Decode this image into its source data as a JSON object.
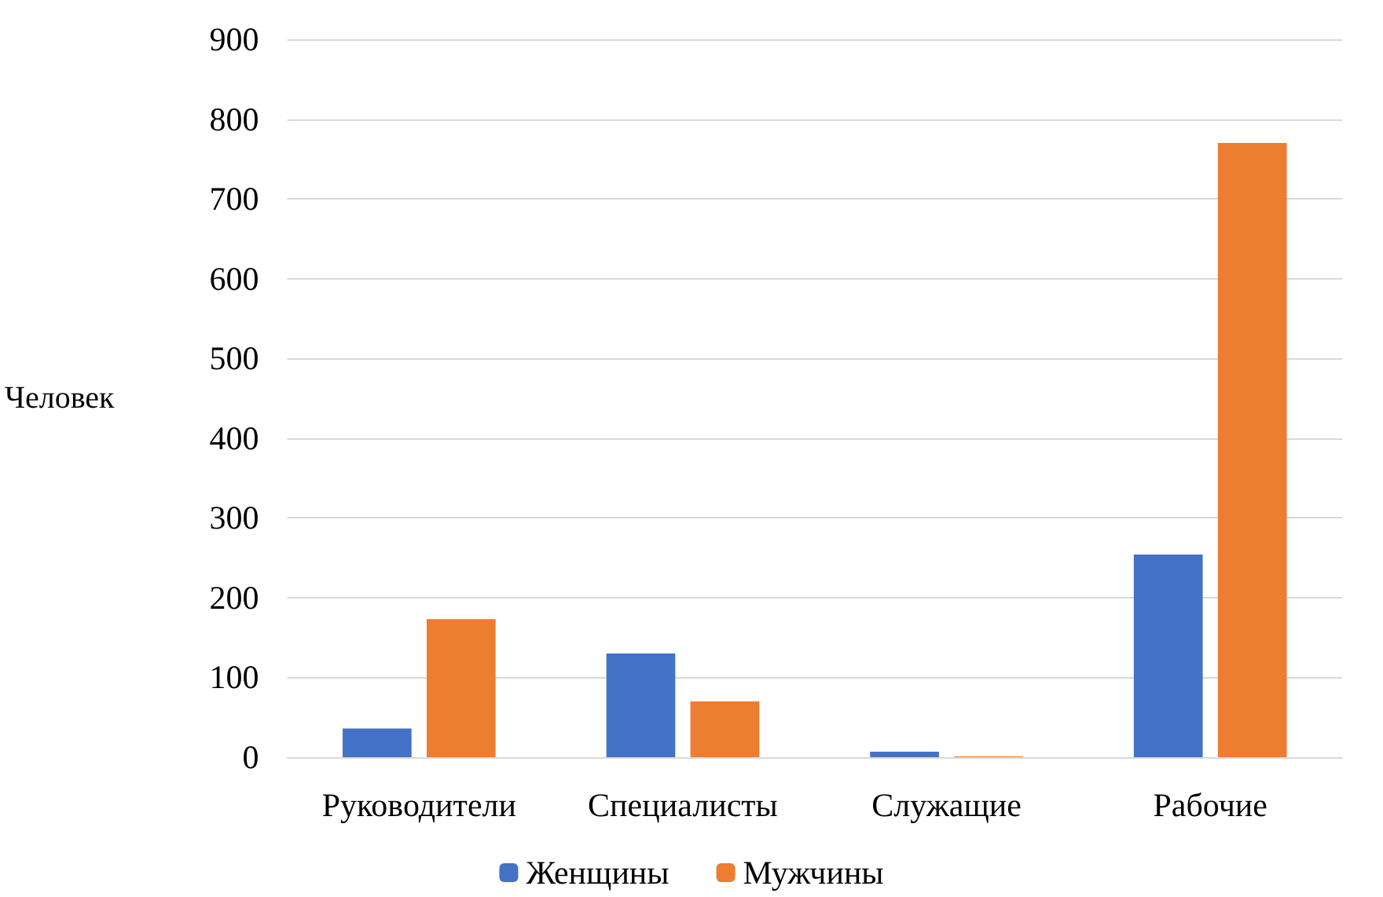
{
  "chart_data": {
    "type": "bar",
    "ylabel": "Человек",
    "categories": [
      "Руководители",
      "Специалисты",
      "Служащие",
      "Рабочие"
    ],
    "series": [
      {
        "name": "Женщины",
        "color": "#4472c4",
        "values": [
          36,
          130,
          7,
          254
        ]
      },
      {
        "name": "Мужчины",
        "color": "#ed7d31",
        "values": [
          173,
          70,
          1,
          770
        ]
      }
    ],
    "ylim": [
      0,
      900
    ],
    "yticks": [
      0,
      100,
      200,
      300,
      400,
      500,
      600,
      700,
      800,
      900
    ],
    "grid": "y",
    "legend": "bottom"
  }
}
